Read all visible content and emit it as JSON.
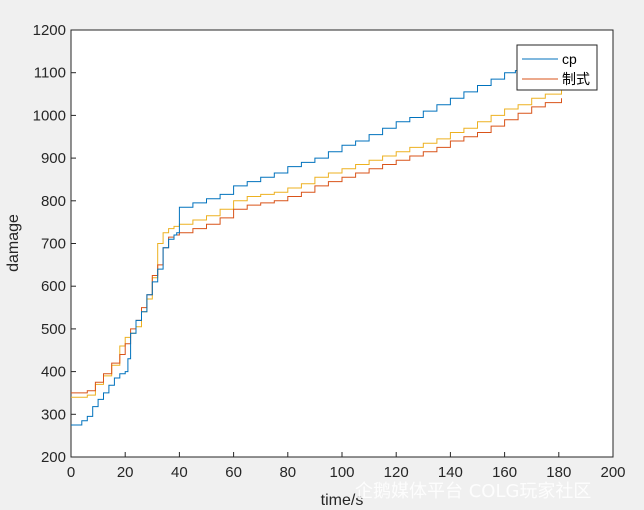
{
  "chart_data": {
    "type": "line",
    "title": "",
    "xlabel": "time/s",
    "ylabel": "damage",
    "xlim": [
      0,
      200
    ],
    "ylim": [
      200,
      1200
    ],
    "xticks": [
      0,
      20,
      40,
      60,
      80,
      100,
      120,
      140,
      160,
      180,
      200
    ],
    "yticks": [
      200,
      300,
      400,
      500,
      600,
      700,
      800,
      900,
      1000,
      1100,
      1200
    ],
    "grid": false,
    "legend": "top-right",
    "series": [
      {
        "name": "cp",
        "color": "#0072BD",
        "x": [
          0,
          2,
          4,
          6,
          8,
          10,
          12,
          14,
          16,
          18,
          20,
          21,
          22,
          24,
          26,
          28,
          30,
          32,
          34,
          36,
          38,
          39,
          40,
          45,
          50,
          55,
          60,
          65,
          70,
          75,
          80,
          85,
          90,
          95,
          100,
          105,
          110,
          115,
          120,
          125,
          130,
          135,
          140,
          145,
          150,
          155,
          160,
          164,
          170,
          175,
          180
        ],
        "y": [
          275,
          275,
          285,
          295,
          318,
          335,
          350,
          368,
          385,
          395,
          400,
          430,
          490,
          520,
          540,
          580,
          610,
          640,
          690,
          710,
          720,
          725,
          785,
          795,
          805,
          815,
          835,
          845,
          855,
          865,
          880,
          890,
          900,
          915,
          930,
          940,
          955,
          970,
          985,
          995,
          1010,
          1025,
          1040,
          1055,
          1070,
          1085,
          1100,
          1105,
          1115,
          1120,
          1125
        ]
      },
      {
        "name": "制式",
        "color": "#D95319",
        "x": [
          0,
          3,
          6,
          9,
          12,
          15,
          18,
          20,
          22,
          24,
          26,
          28,
          30,
          32,
          34,
          36,
          38,
          40,
          45,
          50,
          55,
          60,
          65,
          70,
          75,
          80,
          85,
          90,
          95,
          100,
          105,
          110,
          115,
          120,
          125,
          130,
          135,
          140,
          145,
          150,
          155,
          160,
          165,
          170,
          175,
          181
        ],
        "y": [
          350,
          350,
          355,
          375,
          395,
          420,
          440,
          465,
          500,
          520,
          550,
          580,
          625,
          650,
          690,
          715,
          720,
          725,
          735,
          745,
          760,
          780,
          790,
          795,
          800,
          810,
          820,
          835,
          845,
          855,
          865,
          875,
          885,
          895,
          905,
          915,
          925,
          940,
          950,
          960,
          975,
          990,
          1005,
          1020,
          1030,
          1040
        ]
      },
      {
        "name": "",
        "color": "#EDB120",
        "x": [
          0,
          3,
          6,
          9,
          12,
          15,
          18,
          20,
          22,
          24,
          26,
          28,
          30,
          32,
          34,
          36,
          38,
          40,
          45,
          50,
          55,
          60,
          65,
          70,
          75,
          80,
          85,
          90,
          95,
          100,
          105,
          110,
          115,
          120,
          125,
          130,
          135,
          140,
          145,
          150,
          155,
          160,
          165,
          170,
          175,
          181
        ],
        "y": [
          340,
          340,
          345,
          370,
          390,
          415,
          460,
          480,
          490,
          505,
          540,
          570,
          620,
          700,
          725,
          735,
          740,
          745,
          755,
          765,
          780,
          800,
          810,
          815,
          820,
          830,
          840,
          855,
          865,
          875,
          885,
          895,
          905,
          915,
          925,
          935,
          945,
          960,
          970,
          985,
          1000,
          1015,
          1025,
          1040,
          1050,
          1060
        ]
      }
    ]
  },
  "watermark": "企鹅媒体平台 COLG玩家社区"
}
